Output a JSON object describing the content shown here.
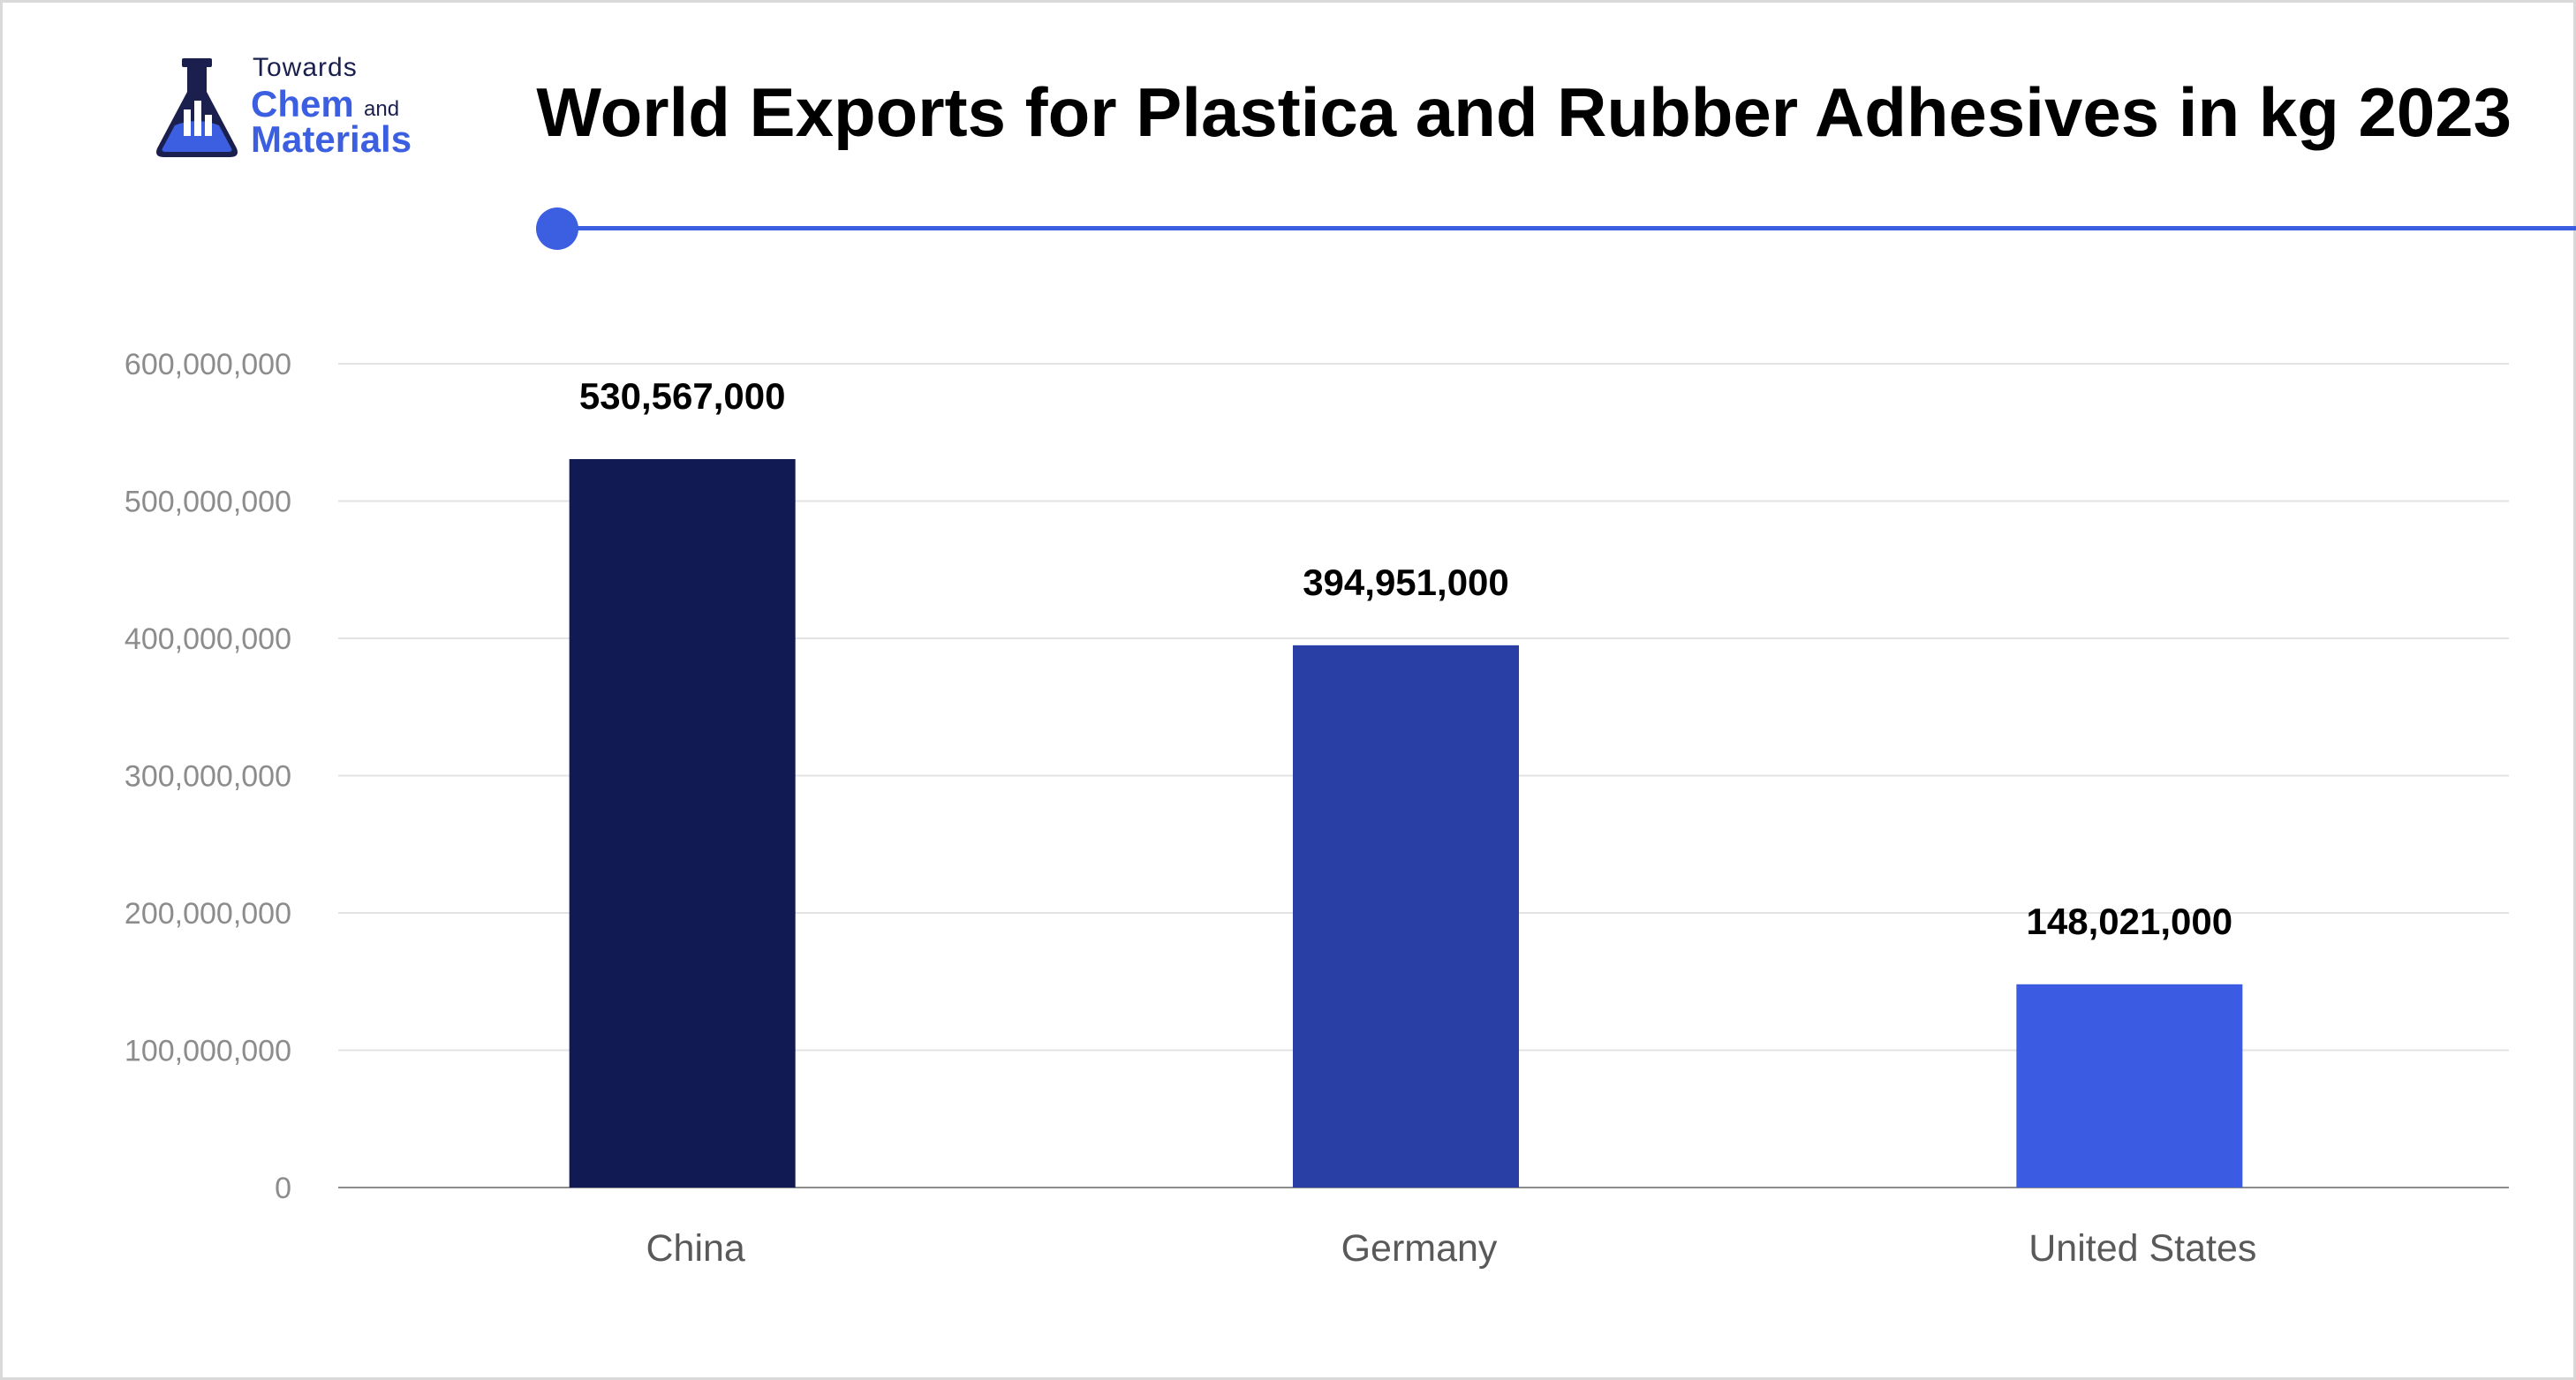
{
  "brand": {
    "line1": "Towards",
    "line2": "Chem",
    "line2_suffix": "and",
    "line3": "Materials"
  },
  "colors": {
    "accent": "#3b5fe0",
    "brand_dark": "#1a1f4e",
    "bars": [
      "#111a52",
      "#2a3fa6",
      "#3b5be2"
    ]
  },
  "chart_data": {
    "type": "bar",
    "title": "World Exports for Plastica and Rubber Adhesives in kg 2023",
    "xlabel": "",
    "ylabel": "",
    "categories": [
      "China",
      "Germany",
      "United States"
    ],
    "values": [
      530567000,
      394951000,
      148021000
    ],
    "value_labels": [
      "530,567,000",
      "394,951,000",
      "148,021,000"
    ],
    "ylim": [
      0,
      600000000
    ],
    "yticks": [
      0,
      100000000,
      200000000,
      300000000,
      400000000,
      500000000,
      600000000
    ],
    "ytick_labels": [
      "0",
      "100,000,000",
      "200,000,000",
      "300,000,000",
      "400,000,000",
      "500,000,000",
      "600,000,000"
    ],
    "grid": true,
    "legend": "none"
  }
}
